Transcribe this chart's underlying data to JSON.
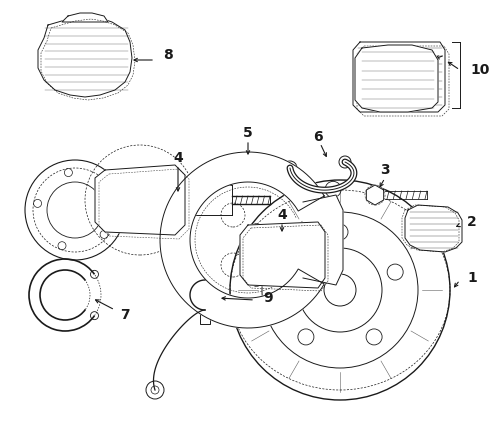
{
  "bg_color": "#ffffff",
  "line_color": "#1a1a1a",
  "lw": 0.7,
  "figsize": [
    5.04,
    4.32
  ],
  "dpi": 100
}
